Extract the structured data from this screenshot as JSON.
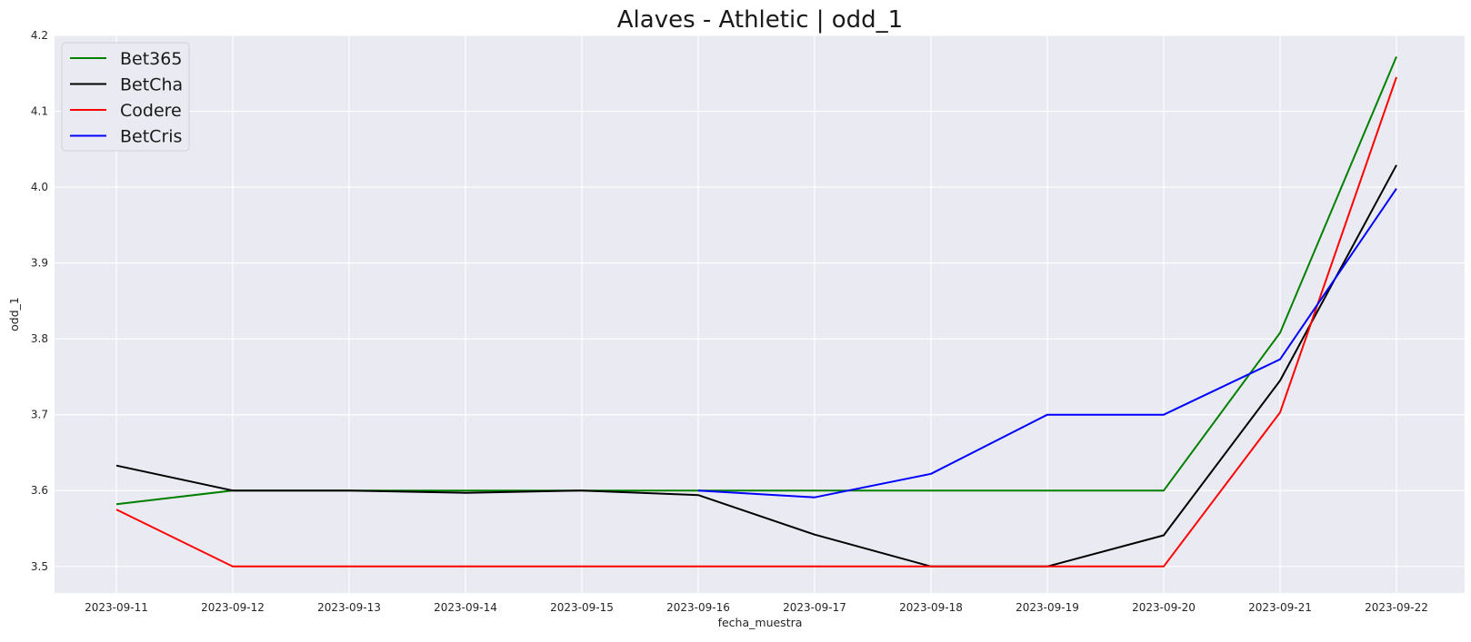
{
  "chart_data": {
    "type": "line",
    "title": "Alaves - Athletic | odd_1",
    "xlabel": "fecha_muestra",
    "ylabel": "odd_1",
    "ylim": [
      3.465,
      4.2
    ],
    "grid": true,
    "legend_position": "top-left",
    "x": [
      "2023-09-11",
      "2023-09-12",
      "2023-09-13",
      "2023-09-14",
      "2023-09-15",
      "2023-09-16",
      "2023-09-17",
      "2023-09-18",
      "2023-09-19",
      "2023-09-20",
      "2023-09-21",
      "2023-09-22"
    ],
    "y_ticks": [
      "3.5",
      "3.6",
      "3.7",
      "3.8",
      "3.9",
      "4.0",
      "4.1",
      "4.2"
    ],
    "series": [
      {
        "name": "Bet365",
        "color": "#008000",
        "values": [
          3.582,
          3.6,
          3.6,
          3.6,
          3.6,
          3.6,
          3.6,
          3.6,
          3.6,
          3.6,
          3.808,
          4.172
        ]
      },
      {
        "name": "BetCha",
        "color": "#000000",
        "values": [
          3.633,
          3.6,
          3.6,
          3.597,
          3.6,
          3.594,
          3.542,
          3.5,
          3.5,
          3.541,
          3.745,
          4.029
        ]
      },
      {
        "name": "Codere",
        "color": "#ff0000",
        "values": [
          3.575,
          3.5,
          3.5,
          3.5,
          3.5,
          3.5,
          3.5,
          3.5,
          3.5,
          3.5,
          3.703,
          4.145
        ]
      },
      {
        "name": "BetCris",
        "color": "#0000ff",
        "values": [
          null,
          null,
          null,
          null,
          null,
          3.6,
          3.591,
          3.622,
          3.7,
          3.7,
          3.773,
          3.998
        ]
      }
    ]
  }
}
